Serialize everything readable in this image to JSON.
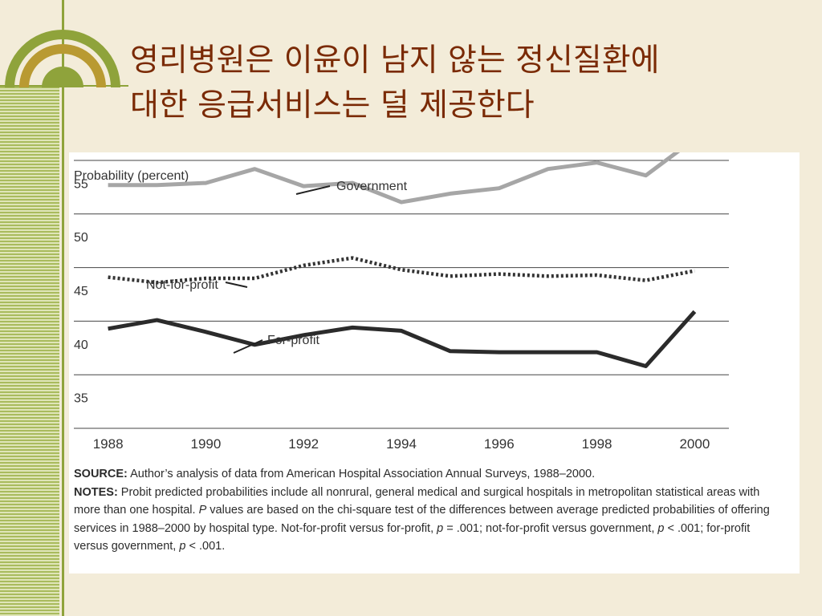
{
  "slide": {
    "title_line1": "영리병원은 이윤이 남지 않는 정신질환에",
    "title_line2": "대한 응급서비스는 덜 제공한다"
  },
  "colors": {
    "background": "#f3ecd9",
    "title": "#7a2a05",
    "accent_green": "#8fa33b",
    "accent_gold": "#b99a32"
  },
  "chart_data": {
    "type": "line",
    "ylabel": "Probability (percent)",
    "ylim": [
      32.5,
      57.5
    ],
    "yticks": [
      35,
      40,
      45,
      50,
      55
    ],
    "xlim": [
      1987.3,
      2000.7
    ],
    "xticks": [
      1988,
      1990,
      1992,
      1994,
      1996,
      1998,
      2000
    ],
    "x": [
      1988,
      1989,
      1990,
      1991,
      1992,
      1993,
      1994,
      1995,
      1996,
      1997,
      1998,
      1999,
      2000
    ],
    "grid": "horizontal",
    "series": [
      {
        "name": "Government",
        "color": "#a6a6a6",
        "style": "solid",
        "values": [
          55.2,
          55.2,
          55.4,
          56.7,
          55.1,
          55.4,
          53.6,
          54.4,
          54.9,
          56.7,
          57.3,
          56.1,
          59.5
        ]
      },
      {
        "name": "Not-for-profit",
        "color": "#333333",
        "style": "dotted",
        "values": [
          46.6,
          46.1,
          46.5,
          46.5,
          47.7,
          48.4,
          47.3,
          46.7,
          46.9,
          46.7,
          46.8,
          46.3,
          47.2
        ]
      },
      {
        "name": "For-profit",
        "color": "#2b2b2b",
        "style": "solid",
        "values": [
          41.8,
          42.6,
          41.5,
          40.3,
          41.2,
          41.9,
          41.6,
          39.7,
          39.6,
          39.6,
          39.6,
          38.3,
          43.4
        ]
      }
    ]
  },
  "notes": {
    "source_label": "SOURCE:",
    "source_text": " Author’s analysis of data from American Hospital Association Annual Surveys, 1988–2000.",
    "notes_label": "NOTES:",
    "notes_text1": " Probit predicted probabilities include all nonrural, general medical and surgical hospitals in metropolitan statistical areas with more than one hospital. ",
    "p1": "P",
    "notes_text2": " values are based on the chi-square test of the differences between average predicted probabilities of offering services in 1988–2000 by hospital type. Not-for-profit versus for-profit, ",
    "p2": "p",
    "notes_text3": " = .001; not-for-profit versus government, ",
    "p3": "p",
    "notes_text4": " < .001; for-profit versus government, ",
    "p4": "p",
    "notes_text5": " < .001."
  }
}
